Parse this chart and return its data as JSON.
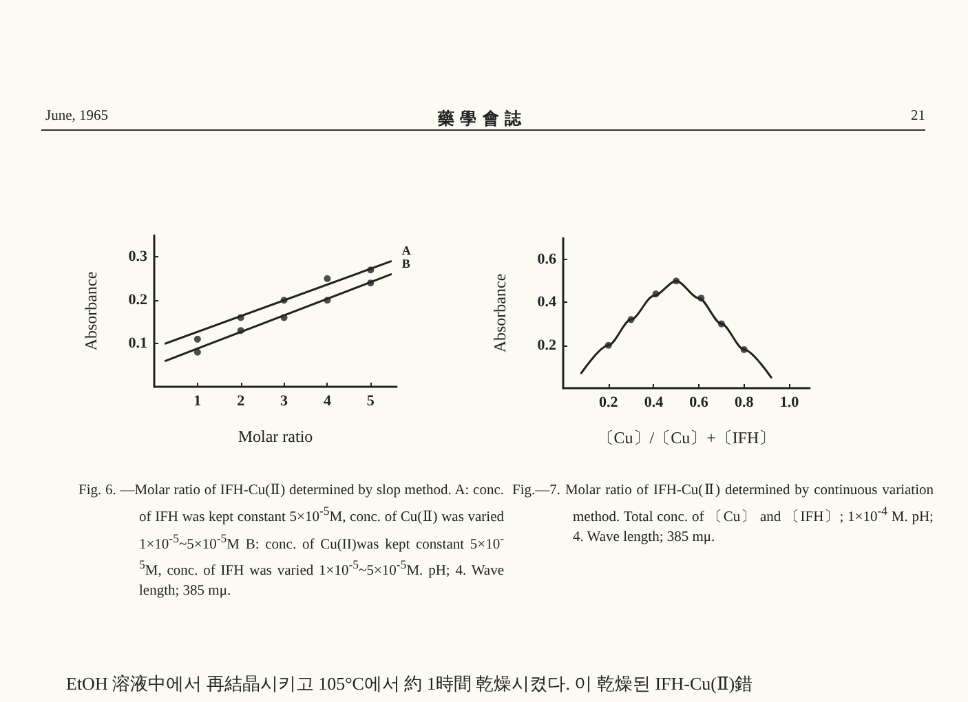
{
  "chart_data": [
    {
      "type": "line",
      "xlabel": "Molar ratio",
      "ylabel": "Absorbance",
      "xlim": [
        0,
        5.6
      ],
      "ylim": [
        0,
        0.35
      ],
      "xticks": [
        1,
        2,
        3,
        4,
        5
      ],
      "yticks": [
        0.1,
        0.2,
        0.3
      ],
      "grid": false,
      "legend": false,
      "series": [
        {
          "type": "scatter",
          "marker": "circle",
          "color": "#222222",
          "x": [
            1,
            2,
            3,
            4,
            5
          ],
          "values": [
            0.11,
            0.16,
            0.2,
            0.25,
            0.27
          ]
        },
        {
          "type": "scatter",
          "marker": "circle",
          "color": "#222222",
          "x": [
            1,
            2,
            3,
            4,
            5
          ],
          "values": [
            0.08,
            0.13,
            0.16,
            0.2,
            0.24
          ]
        },
        {
          "type": "line",
          "name": "A",
          "marker": "none",
          "line_style": "solid",
          "color": "#222222",
          "x": [
            0.26,
            5.47
          ],
          "values": [
            0.1,
            0.29
          ]
        },
        {
          "type": "line",
          "name": "B",
          "marker": "none",
          "line_style": "solid",
          "color": "#222222",
          "x": [
            0.26,
            5.47
          ],
          "values": [
            0.06,
            0.26
          ]
        }
      ],
      "annotations": [
        "June, 1965",
        "藥 學 會 誌",
        "21",
        "Fig. 6. —Molar ratio of IFH-Cu(Ⅱ) determined by slop method. A: conc. of IFH was kept constant 5×10$^{-5}$M, conc. of Cu(Ⅱ) was varied 1×10$^{-5}$~5×10$^{-5}$M B: conc. of Cu(II)was kept constant 5×10$^{-5}$M, conc. of IFH was varied 1×10$^{-5}$~5×10$^{-5}$M. pH; 4. Wave length; 385 mμ."
      ]
    },
    {
      "type": "line",
      "xlabel": "〔Cu〕/〔Cu〕+〔IFH〕",
      "ylabel": "Absorbance",
      "xlim": [
        0,
        1.09
      ],
      "ylim": [
        0,
        0.7
      ],
      "xticks": [
        0.2,
        0.4,
        0.6,
        0.8,
        {
          "value": 1,
          "label": "1.0"
        }
      ],
      "yticks": [
        0.2,
        0.4,
        0.6
      ],
      "grid": false,
      "legend": false,
      "series": [
        {
          "type": "line",
          "marker": "none",
          "line_style": "solid",
          "color": "#222222",
          "x": [
            0.08,
            0.2,
            0.3,
            0.4,
            0.5,
            0.6,
            0.7,
            0.8,
            0.92
          ],
          "values": [
            0.07,
            0.2,
            0.32,
            0.43,
            0.5,
            0.42,
            0.3,
            0.18,
            0.05
          ]
        },
        {
          "type": "scatter",
          "marker": "circle",
          "color": "#222222",
          "x": [
            0.2,
            0.3,
            0.41,
            0.5,
            0.61,
            0.7,
            0.8
          ],
          "values": [
            0.2,
            0.32,
            0.44,
            0.5,
            0.42,
            0.3,
            0.18
          ]
        }
      ],
      "annotations": [
        "Fig.—7. Molar ratio of IFH-Cu(Ⅱ) determined by continuous variation method. Total conc. of 〔Cu〕 and 〔IFH〕; 1×10$^{-4}$ M. pH; 4. Wave length; 385 mμ.",
        "EtOH 溶液中에서 再結晶시키고 105°C에서 約 1時間 乾燥시켰다. 이 乾燥된 IFH-Cu(Ⅱ)錯"
      ]
    }
  ]
}
